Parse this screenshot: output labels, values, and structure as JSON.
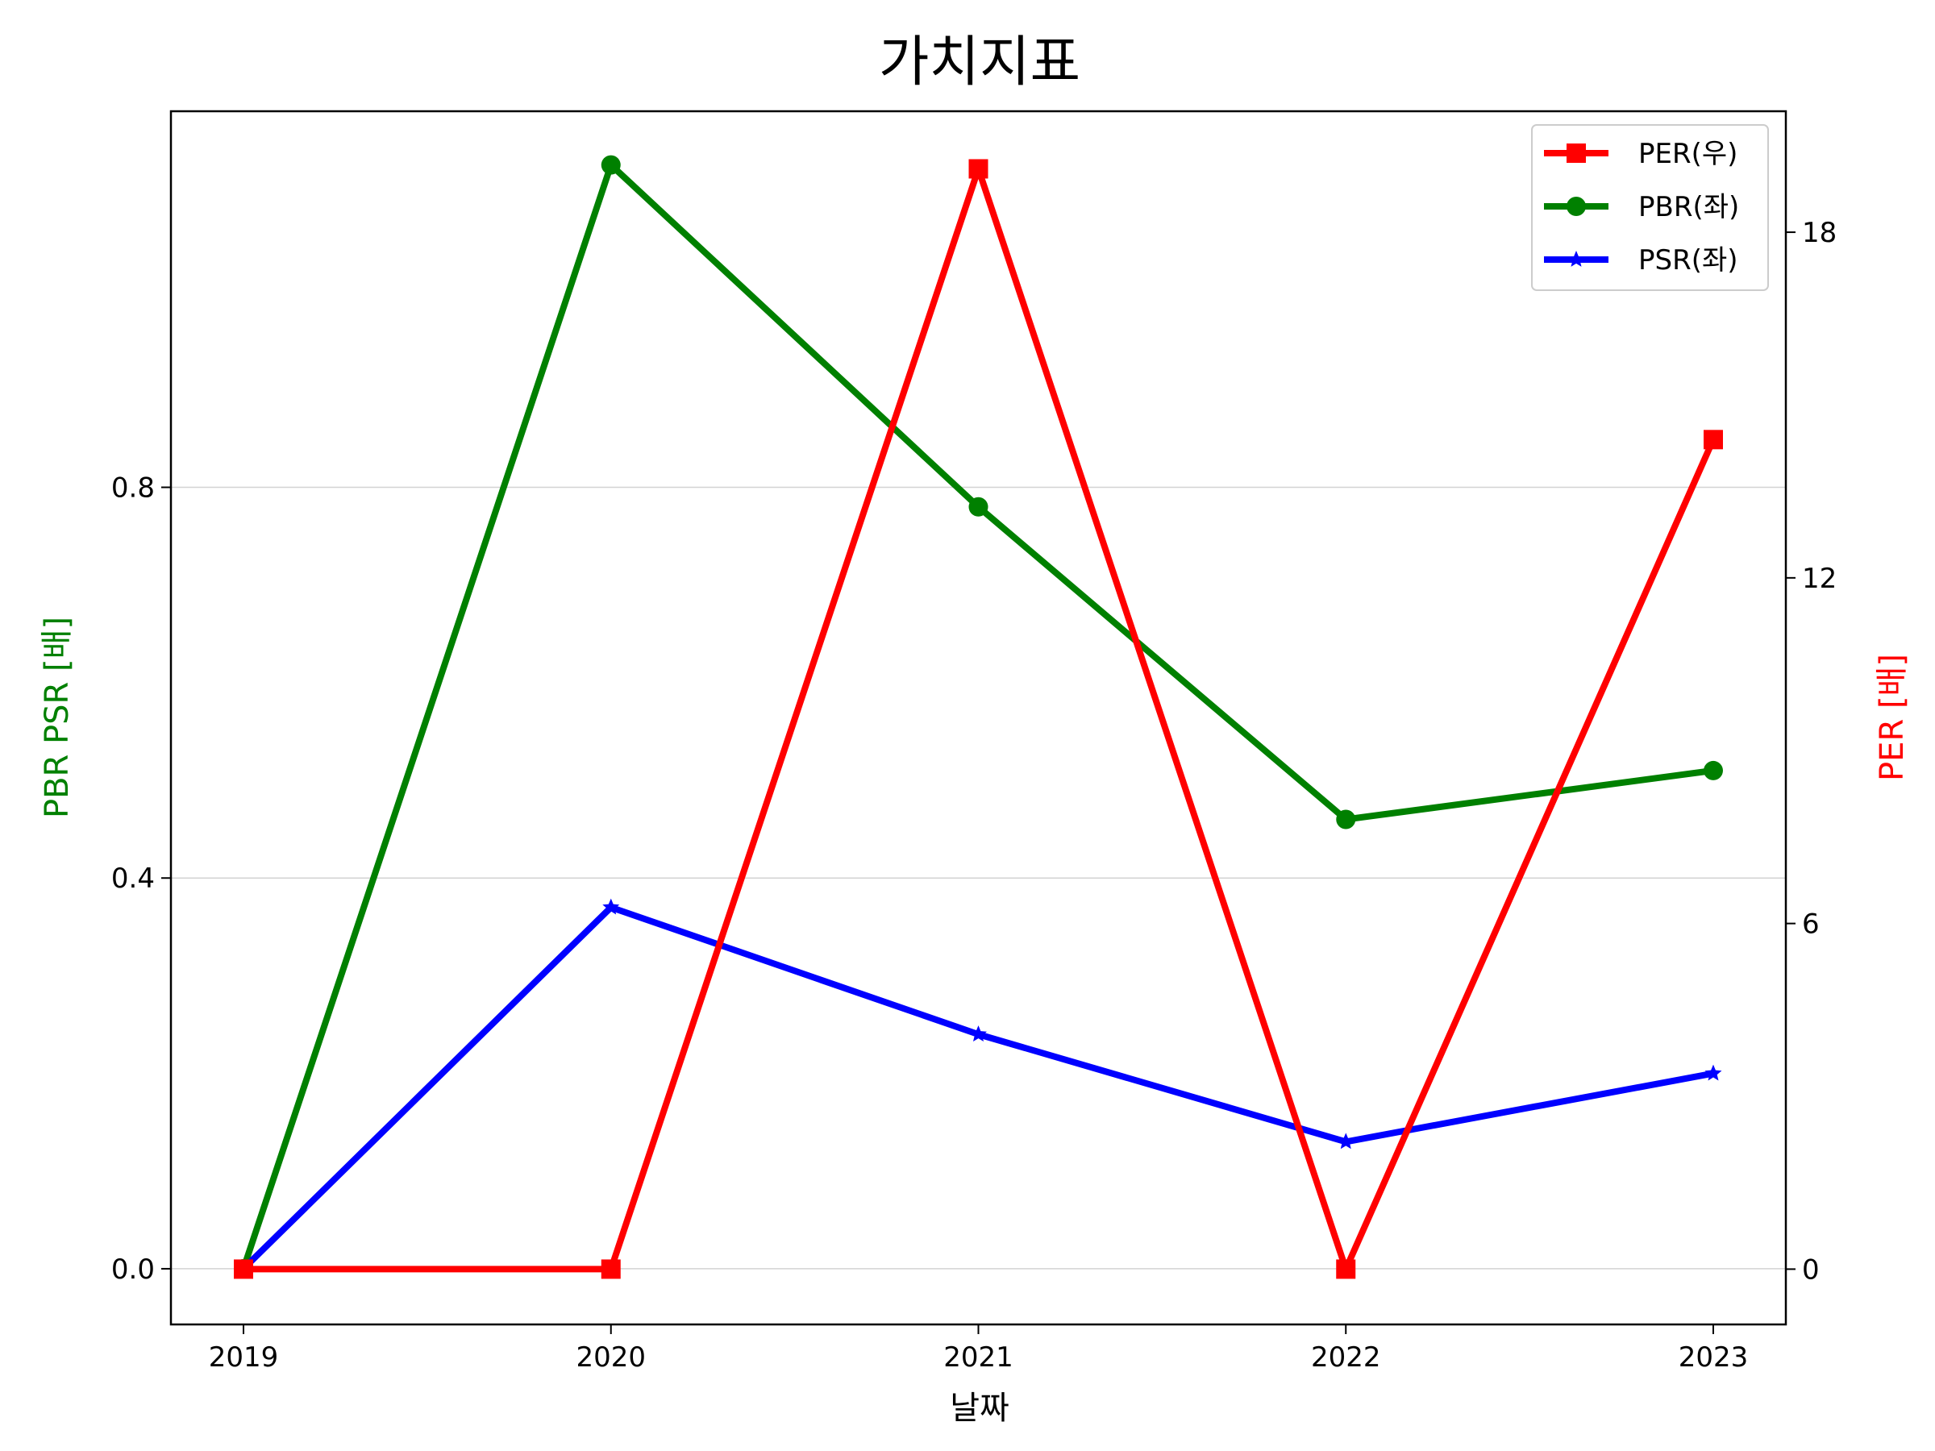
{
  "chart_data": {
    "type": "line",
    "title": "가치지표",
    "xlabel": "날짜",
    "ylabel_left": "PBR PSR [배]",
    "ylabel_right": "PER [배]",
    "categories": [
      "2019",
      "2020",
      "2021",
      "2022",
      "2023"
    ],
    "ylim_left": [
      -0.057,
      1.185
    ],
    "ylim_right": [
      -0.96,
      20.1
    ],
    "yticks_left": [
      "0.0",
      "0.4",
      "0.8"
    ],
    "yticks_right": [
      "0",
      "6",
      "12",
      "18"
    ],
    "ytick_values_left": [
      0.0,
      0.4,
      0.8
    ],
    "ytick_values_right": [
      0,
      6,
      12,
      18
    ],
    "grid": "horizontal (left axis)",
    "legend_position": "top-right",
    "series": [
      {
        "name": "PER(우)",
        "axis": "right",
        "color": "#ff0000",
        "marker": "square",
        "values": [
          0.0,
          0.0,
          19.1,
          0.0,
          14.4
        ]
      },
      {
        "name": "PBR(좌)",
        "axis": "left",
        "color": "#008000",
        "marker": "circle",
        "values": [
          0.0,
          1.13,
          0.78,
          0.46,
          0.51
        ]
      },
      {
        "name": "PSR(좌)",
        "axis": "left",
        "color": "#0000ff",
        "marker": "star",
        "values": [
          0.0,
          0.37,
          0.24,
          0.13,
          0.2
        ]
      }
    ],
    "colors": {
      "left_axis_label": "#008000",
      "right_axis_label": "#ff0000",
      "grid": "#d3d3d3"
    }
  }
}
